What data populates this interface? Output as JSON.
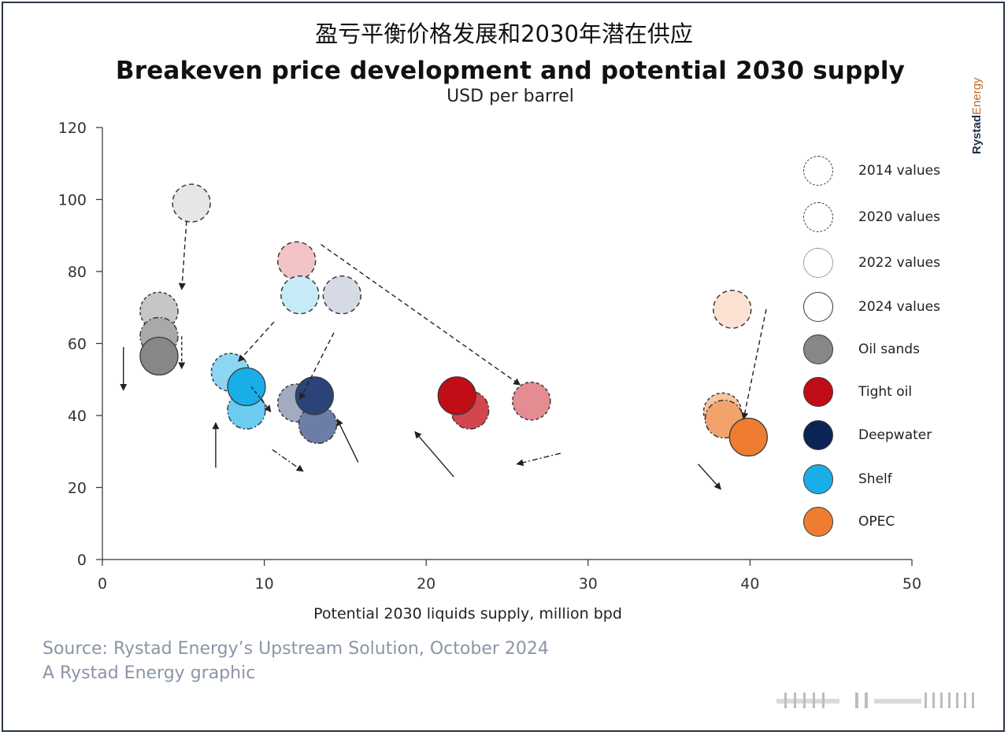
{
  "header": {
    "cn_title": "盈亏平衡价格发展和2030年潜在供应",
    "title": "Breakeven price development and potential 2030 supply",
    "subtitle": "USD per barrel"
  },
  "brand": {
    "part1": "Rystad",
    "part2": "Energy"
  },
  "footer": {
    "source": "Source: Rystad Energy’s Upstream Solution, October 2024",
    "credit": "A Rystad Energy graphic"
  },
  "legend": [
    {
      "label": "2014 values",
      "style": "dash-long",
      "fill": "#ffffff"
    },
    {
      "label": "2020 values",
      "style": "dash-short",
      "fill": "#ffffff"
    },
    {
      "label": "2022 values",
      "style": "dash-dot",
      "fill": "#ffffff"
    },
    {
      "label": "2024 values",
      "style": "solid",
      "fill": "#ffffff"
    },
    {
      "label": "Oil sands",
      "style": "solid",
      "fill": "#878787"
    },
    {
      "label": "Tight oil",
      "style": "solid",
      "fill": "#c00d16"
    },
    {
      "label": "Deepwater",
      "style": "solid",
      "fill": "#0c2356"
    },
    {
      "label": "Shelf",
      "style": "solid",
      "fill": "#1aaee8"
    },
    {
      "label": "OPEC",
      "style": "solid",
      "fill": "#ef7d31"
    }
  ],
  "chart_data": {
    "type": "scatter",
    "xlabel": "Potential 2030 liquids supply, million bpd",
    "ylabel": "",
    "xlim": [
      0,
      50
    ],
    "ylim": [
      0,
      120
    ],
    "xticks": [
      0,
      10,
      20,
      30,
      40,
      50
    ],
    "yticks": [
      0,
      20,
      40,
      60,
      80,
      100,
      120
    ],
    "grid": false,
    "legend_position": "right",
    "series": [
      {
        "name": "Oil sands",
        "points": [
          {
            "year": "2014",
            "x": 5.5,
            "y": 99,
            "color": "#e6e6e6"
          },
          {
            "year": "2020",
            "x": 3.5,
            "y": 69,
            "color": "#c6c6c6"
          },
          {
            "year": "2022",
            "x": 3.5,
            "y": 62,
            "color": "#a9a9a9"
          },
          {
            "year": "2024",
            "x": 3.5,
            "y": 56.5,
            "color": "#878787"
          }
        ]
      },
      {
        "name": "Tight oil",
        "points": [
          {
            "year": "2014",
            "x": 12,
            "y": 83,
            "color": "#f2c4c7"
          },
          {
            "year": "2020",
            "x": 26.5,
            "y": 44,
            "color": "#e38c92"
          },
          {
            "year": "2022",
            "x": 22.7,
            "y": 41.5,
            "color": "#d3464d"
          },
          {
            "year": "2024",
            "x": 21.9,
            "y": 45.5,
            "color": "#c00d16"
          }
        ]
      },
      {
        "name": "Deepwater",
        "points": [
          {
            "year": "2014",
            "x": 14.8,
            "y": 73.5,
            "color": "#d6dae4"
          },
          {
            "year": "2020",
            "x": 12,
            "y": 43.5,
            "color": "#a3abc3"
          },
          {
            "year": "2022",
            "x": 13.3,
            "y": 37.5,
            "color": "#6c7ea8"
          },
          {
            "year": "2024",
            "x": 13.1,
            "y": 45.5,
            "color": "#2c4379"
          }
        ]
      },
      {
        "name": "Shelf",
        "points": [
          {
            "year": "2014",
            "x": 12.2,
            "y": 73.5,
            "color": "#c6ebf8"
          },
          {
            "year": "2020",
            "x": 7.9,
            "y": 52,
            "color": "#8dd6f3"
          },
          {
            "year": "2022",
            "x": 8.9,
            "y": 41.5,
            "color": "#6ccbf1"
          },
          {
            "year": "2024",
            "x": 8.9,
            "y": 48,
            "color": "#1aaee8"
          }
        ]
      },
      {
        "name": "OPEC",
        "points": [
          {
            "year": "2014",
            "x": 38.9,
            "y": 69.5,
            "color": "#fbe2d2"
          },
          {
            "year": "2020",
            "x": 38.3,
            "y": 41,
            "color": "#f7c4a2"
          },
          {
            "year": "2022",
            "x": 38.4,
            "y": 39,
            "color": "#f2a36c"
          },
          {
            "year": "2024",
            "x": 39.9,
            "y": 34,
            "color": "#ef7d31"
          }
        ]
      }
    ],
    "arrows": [
      {
        "from": [
          5.2,
          94
        ],
        "to": [
          4.9,
          75
        ],
        "style": "dash-long"
      },
      {
        "from": [
          4.9,
          62
        ],
        "to": [
          4.9,
          53
        ],
        "style": "dash-short"
      },
      {
        "from": [
          1.3,
          59
        ],
        "to": [
          1.3,
          47
        ],
        "style": "solid"
      },
      {
        "from": [
          13.5,
          87.5
        ],
        "to": [
          25.8,
          48.5
        ],
        "style": "dash-long"
      },
      {
        "from": [
          28.3,
          29.5
        ],
        "to": [
          25.6,
          26.5
        ],
        "style": "dash-dot"
      },
      {
        "from": [
          21.7,
          23
        ],
        "to": [
          19.3,
          35.5
        ],
        "style": "solid"
      },
      {
        "from": [
          10.6,
          66
        ],
        "to": [
          8.4,
          55
        ],
        "style": "dash-long"
      },
      {
        "from": [
          9.2,
          48
        ],
        "to": [
          10.4,
          41
        ],
        "style": "dash-short"
      },
      {
        "from": [
          10.5,
          30.5
        ],
        "to": [
          12.4,
          24.5
        ],
        "style": "dash-dot"
      },
      {
        "from": [
          7.0,
          25.5
        ],
        "to": [
          7.0,
          38
        ],
        "style": "solid"
      },
      {
        "from": [
          14.3,
          63
        ],
        "to": [
          12.2,
          44.5
        ],
        "style": "dash-long"
      },
      {
        "from": [
          15.8,
          27
        ],
        "to": [
          14.5,
          39
        ],
        "style": "solid"
      },
      {
        "from": [
          41.0,
          69.5
        ],
        "to": [
          39.6,
          39
        ],
        "style": "dash-long"
      },
      {
        "from": [
          36.8,
          26.5
        ],
        "to": [
          38.2,
          19.5
        ],
        "style": "solid"
      }
    ]
  }
}
